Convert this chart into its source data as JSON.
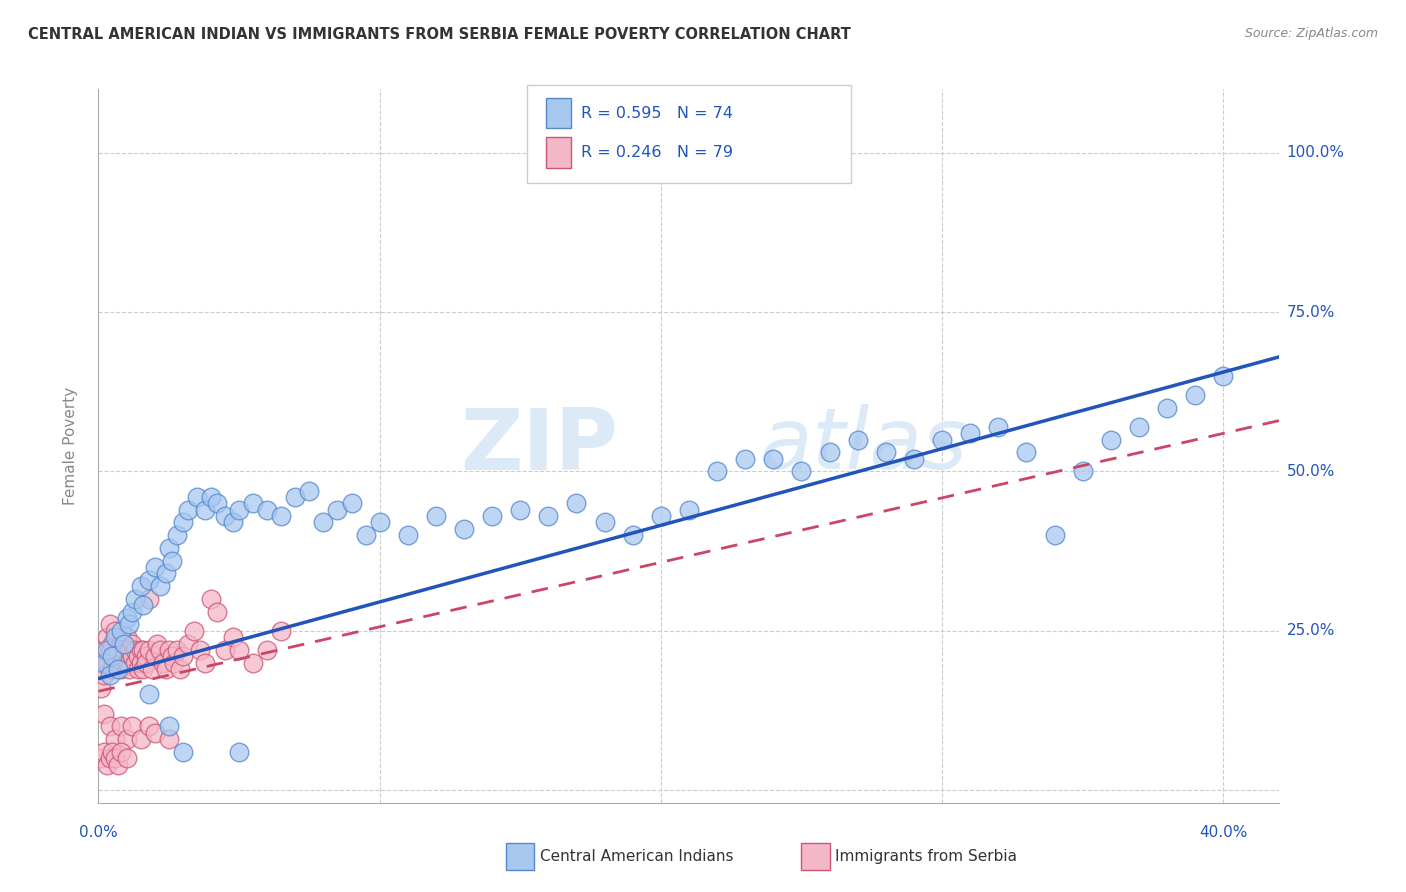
{
  "title": "CENTRAL AMERICAN INDIAN VS IMMIGRANTS FROM SERBIA FEMALE POVERTY CORRELATION CHART",
  "source": "Source: ZipAtlas.com",
  "ylabel": "Female Poverty",
  "xlim": [
    0.0,
    0.42
  ],
  "ylim": [
    -0.02,
    1.1
  ],
  "ytick_positions": [
    0.0,
    0.25,
    0.5,
    0.75,
    1.0
  ],
  "xtick_positions": [
    0.0,
    0.1,
    0.2,
    0.3,
    0.4
  ],
  "blue_R": 0.595,
  "blue_N": 74,
  "pink_R": 0.246,
  "pink_N": 79,
  "blue_color": "#a8c8f0",
  "pink_color": "#f5b8c8",
  "blue_edge_color": "#5588cc",
  "pink_edge_color": "#cc5577",
  "blue_line_color": "#2255bb",
  "pink_line_color": "#cc4466",
  "watermark_zip": "ZIP",
  "watermark_atlas": "atlas",
  "legend_label_blue": "Central American Indians",
  "legend_label_pink": "Immigrants from Serbia",
  "blue_line_x": [
    0.0,
    0.42
  ],
  "blue_line_y": [
    0.175,
    0.68
  ],
  "pink_line_x": [
    0.0,
    0.42
  ],
  "pink_line_y": [
    0.155,
    0.58
  ],
  "blue_scatter_x": [
    0.002,
    0.003,
    0.004,
    0.005,
    0.006,
    0.007,
    0.008,
    0.009,
    0.01,
    0.011,
    0.012,
    0.013,
    0.015,
    0.016,
    0.018,
    0.02,
    0.022,
    0.024,
    0.025,
    0.026,
    0.028,
    0.03,
    0.032,
    0.035,
    0.038,
    0.04,
    0.042,
    0.045,
    0.048,
    0.05,
    0.055,
    0.06,
    0.065,
    0.07,
    0.075,
    0.08,
    0.085,
    0.09,
    0.095,
    0.1,
    0.11,
    0.12,
    0.13,
    0.14,
    0.15,
    0.16,
    0.17,
    0.18,
    0.19,
    0.2,
    0.21,
    0.22,
    0.23,
    0.24,
    0.25,
    0.26,
    0.27,
    0.28,
    0.29,
    0.3,
    0.31,
    0.32,
    0.33,
    0.34,
    0.35,
    0.36,
    0.37,
    0.38,
    0.39,
    0.4,
    0.018,
    0.025,
    0.03,
    0.05
  ],
  "blue_scatter_y": [
    0.2,
    0.22,
    0.18,
    0.21,
    0.24,
    0.19,
    0.25,
    0.23,
    0.27,
    0.26,
    0.28,
    0.3,
    0.32,
    0.29,
    0.33,
    0.35,
    0.32,
    0.34,
    0.38,
    0.36,
    0.4,
    0.42,
    0.44,
    0.46,
    0.44,
    0.46,
    0.45,
    0.43,
    0.42,
    0.44,
    0.45,
    0.44,
    0.43,
    0.46,
    0.47,
    0.42,
    0.44,
    0.45,
    0.4,
    0.42,
    0.4,
    0.43,
    0.41,
    0.43,
    0.44,
    0.43,
    0.45,
    0.42,
    0.4,
    0.43,
    0.44,
    0.5,
    0.52,
    0.52,
    0.5,
    0.53,
    0.55,
    0.53,
    0.52,
    0.55,
    0.56,
    0.57,
    0.53,
    0.4,
    0.5,
    0.55,
    0.57,
    0.6,
    0.62,
    0.65,
    0.15,
    0.1,
    0.06,
    0.06
  ],
  "pink_scatter_x": [
    0.001,
    0.001,
    0.002,
    0.002,
    0.003,
    0.003,
    0.004,
    0.004,
    0.005,
    0.005,
    0.006,
    0.006,
    0.007,
    0.007,
    0.008,
    0.008,
    0.009,
    0.009,
    0.01,
    0.01,
    0.011,
    0.011,
    0.012,
    0.012,
    0.013,
    0.013,
    0.014,
    0.014,
    0.015,
    0.015,
    0.016,
    0.016,
    0.017,
    0.017,
    0.018,
    0.018,
    0.019,
    0.02,
    0.021,
    0.022,
    0.023,
    0.024,
    0.025,
    0.026,
    0.027,
    0.028,
    0.029,
    0.03,
    0.032,
    0.034,
    0.036,
    0.038,
    0.04,
    0.042,
    0.045,
    0.048,
    0.05,
    0.055,
    0.06,
    0.065,
    0.002,
    0.004,
    0.006,
    0.008,
    0.01,
    0.012,
    0.015,
    0.018,
    0.02,
    0.025,
    0.001,
    0.002,
    0.003,
    0.004,
    0.005,
    0.006,
    0.007,
    0.008,
    0.01
  ],
  "pink_scatter_y": [
    0.16,
    0.2,
    0.18,
    0.22,
    0.2,
    0.24,
    0.22,
    0.26,
    0.19,
    0.23,
    0.21,
    0.25,
    0.2,
    0.22,
    0.19,
    0.23,
    0.21,
    0.22,
    0.2,
    0.24,
    0.19,
    0.22,
    0.21,
    0.23,
    0.2,
    0.22,
    0.19,
    0.21,
    0.22,
    0.2,
    0.19,
    0.22,
    0.21,
    0.2,
    0.22,
    0.3,
    0.19,
    0.21,
    0.23,
    0.22,
    0.2,
    0.19,
    0.22,
    0.21,
    0.2,
    0.22,
    0.19,
    0.21,
    0.23,
    0.25,
    0.22,
    0.2,
    0.3,
    0.28,
    0.22,
    0.24,
    0.22,
    0.2,
    0.22,
    0.25,
    0.12,
    0.1,
    0.08,
    0.1,
    0.08,
    0.1,
    0.08,
    0.1,
    0.09,
    0.08,
    0.05,
    0.06,
    0.04,
    0.05,
    0.06,
    0.05,
    0.04,
    0.06,
    0.05
  ]
}
